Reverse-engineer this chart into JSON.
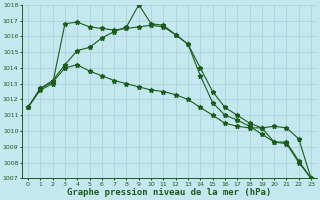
{
  "background_color": "#c5e8f0",
  "grid_color": "#a8d0d8",
  "line_color": "#1a5c1a",
  "line1": {
    "x": [
      0,
      1,
      2,
      3,
      4,
      5,
      6,
      7,
      8,
      9,
      10,
      11,
      12,
      13,
      14,
      15,
      16,
      17,
      18,
      19,
      20,
      21,
      22,
      23
    ],
    "y": [
      1011.5,
      1012.7,
      1013.2,
      1014.2,
      1015.1,
      1015.3,
      1015.9,
      1016.3,
      1016.6,
      1018.0,
      1016.8,
      1016.7,
      1016.1,
      1015.5,
      1014.0,
      1012.5,
      1011.5,
      1011.0,
      1010.5,
      1010.2,
      1009.3,
      1009.3,
      1008.1,
      1007.0
    ]
  },
  "line2": {
    "x": [
      0,
      1,
      2,
      3,
      4,
      5,
      6,
      7,
      8,
      9,
      10,
      11,
      12,
      13,
      14,
      15,
      16,
      17,
      18,
      19,
      20,
      21,
      22,
      23
    ],
    "y": [
      1011.5,
      1012.7,
      1013.1,
      1014.0,
      1014.2,
      1013.8,
      1013.5,
      1013.2,
      1013.0,
      1012.8,
      1012.6,
      1012.5,
      1012.3,
      1012.0,
      1011.5,
      1011.0,
      1010.5,
      1010.3,
      1010.2,
      1010.2,
      1010.3,
      1010.2,
      1009.5,
      1007.0
    ]
  },
  "line3": {
    "x": [
      0,
      1,
      2,
      3,
      4,
      5,
      6,
      7,
      8,
      9,
      10,
      11,
      12,
      13,
      14,
      15,
      16,
      17,
      18,
      19,
      20,
      21,
      22,
      23
    ],
    "y": [
      1011.5,
      1012.6,
      1013.0,
      1016.8,
      1016.9,
      1016.6,
      1016.5,
      1016.4,
      1016.5,
      1016.6,
      1016.7,
      1016.6,
      1016.1,
      1015.5,
      1013.5,
      1011.8,
      1011.0,
      1010.7,
      1010.3,
      1009.8,
      1009.3,
      1009.2,
      1008.0,
      1007.0
    ]
  },
  "ylim": [
    1007,
    1018
  ],
  "yticks": [
    1007,
    1008,
    1009,
    1010,
    1011,
    1012,
    1013,
    1014,
    1015,
    1016,
    1017,
    1018
  ],
  "xticks": [
    0,
    1,
    2,
    3,
    4,
    5,
    6,
    7,
    8,
    9,
    10,
    11,
    12,
    13,
    14,
    15,
    16,
    17,
    18,
    19,
    20,
    21,
    22,
    23
  ],
  "xlabel": "Graphe pression niveau de la mer (hPa)",
  "marker": "*",
  "marker_size": 3.5,
  "line_width": 0.8,
  "tick_fontsize": 4.5,
  "xlabel_fontsize": 6.5
}
